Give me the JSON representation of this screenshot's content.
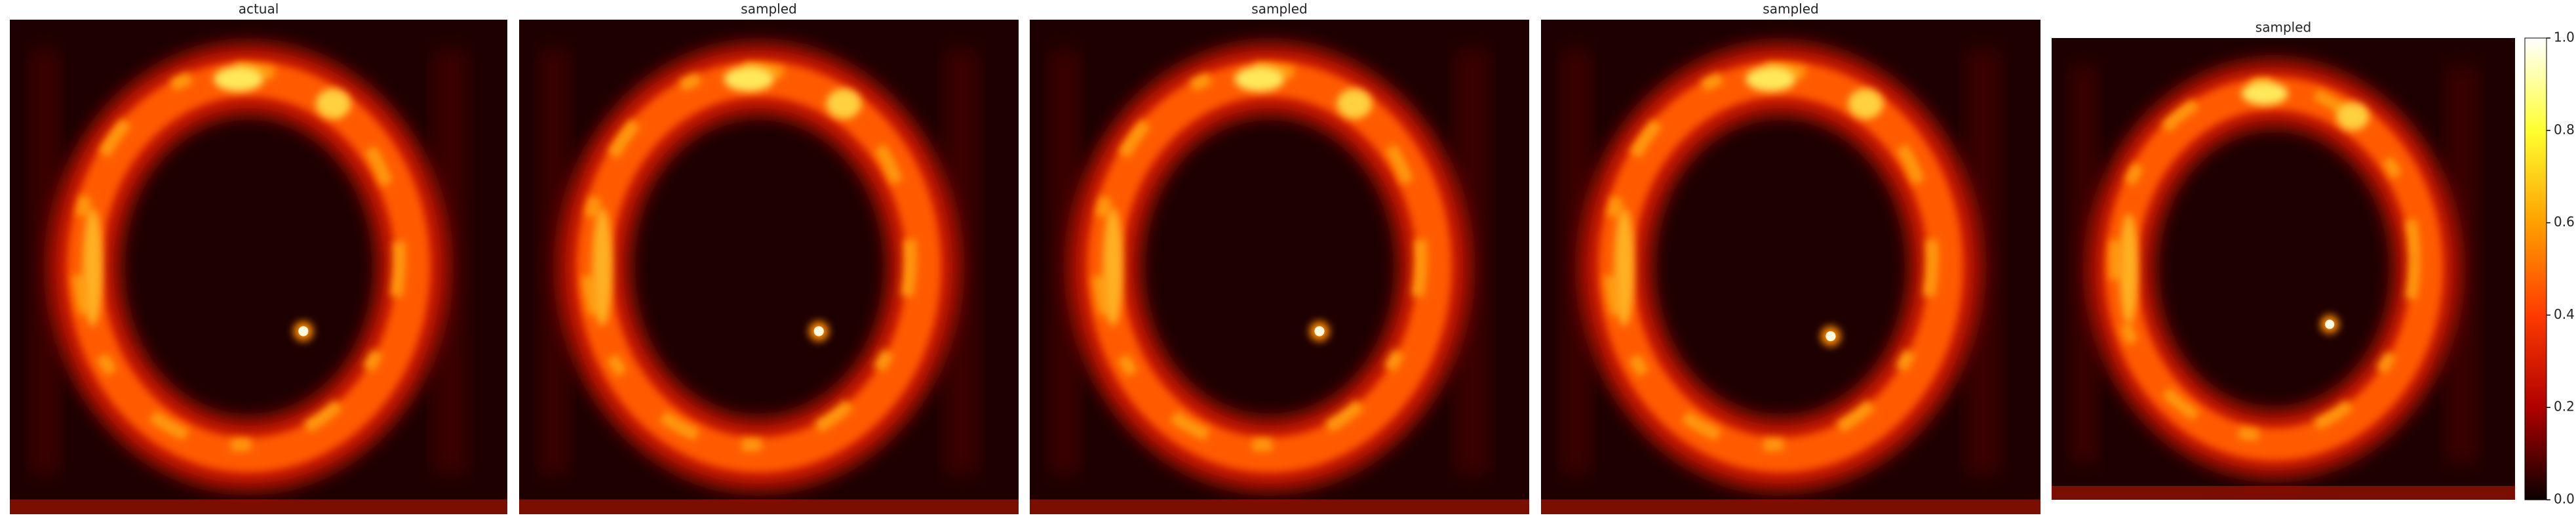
{
  "chart_data": [
    {
      "type": "image",
      "title": "actual"
    },
    {
      "type": "image",
      "title": "sampled"
    },
    {
      "type": "image",
      "title": "sampled"
    },
    {
      "type": "image",
      "title": "sampled"
    },
    {
      "type": "image",
      "title": "sampled"
    },
    {
      "type": "colorbar",
      "ylim": [
        0,
        1
      ],
      "yticks": [
        {
          "value": 0,
          "label": "0.0"
        },
        {
          "value": 0.2,
          "label": "0.2"
        },
        {
          "value": 0.4,
          "label": "0.4"
        },
        {
          "value": 0.6,
          "label": "0.6"
        },
        {
          "value": 0.8,
          "label": "0.8"
        },
        {
          "value": 1,
          "label": "1.0"
        }
      ],
      "colors": [
        "#0b0000",
        "#b00000",
        "#ff3b00",
        "#ffa000",
        "#ffff30",
        "#ffffff"
      ]
    }
  ]
}
